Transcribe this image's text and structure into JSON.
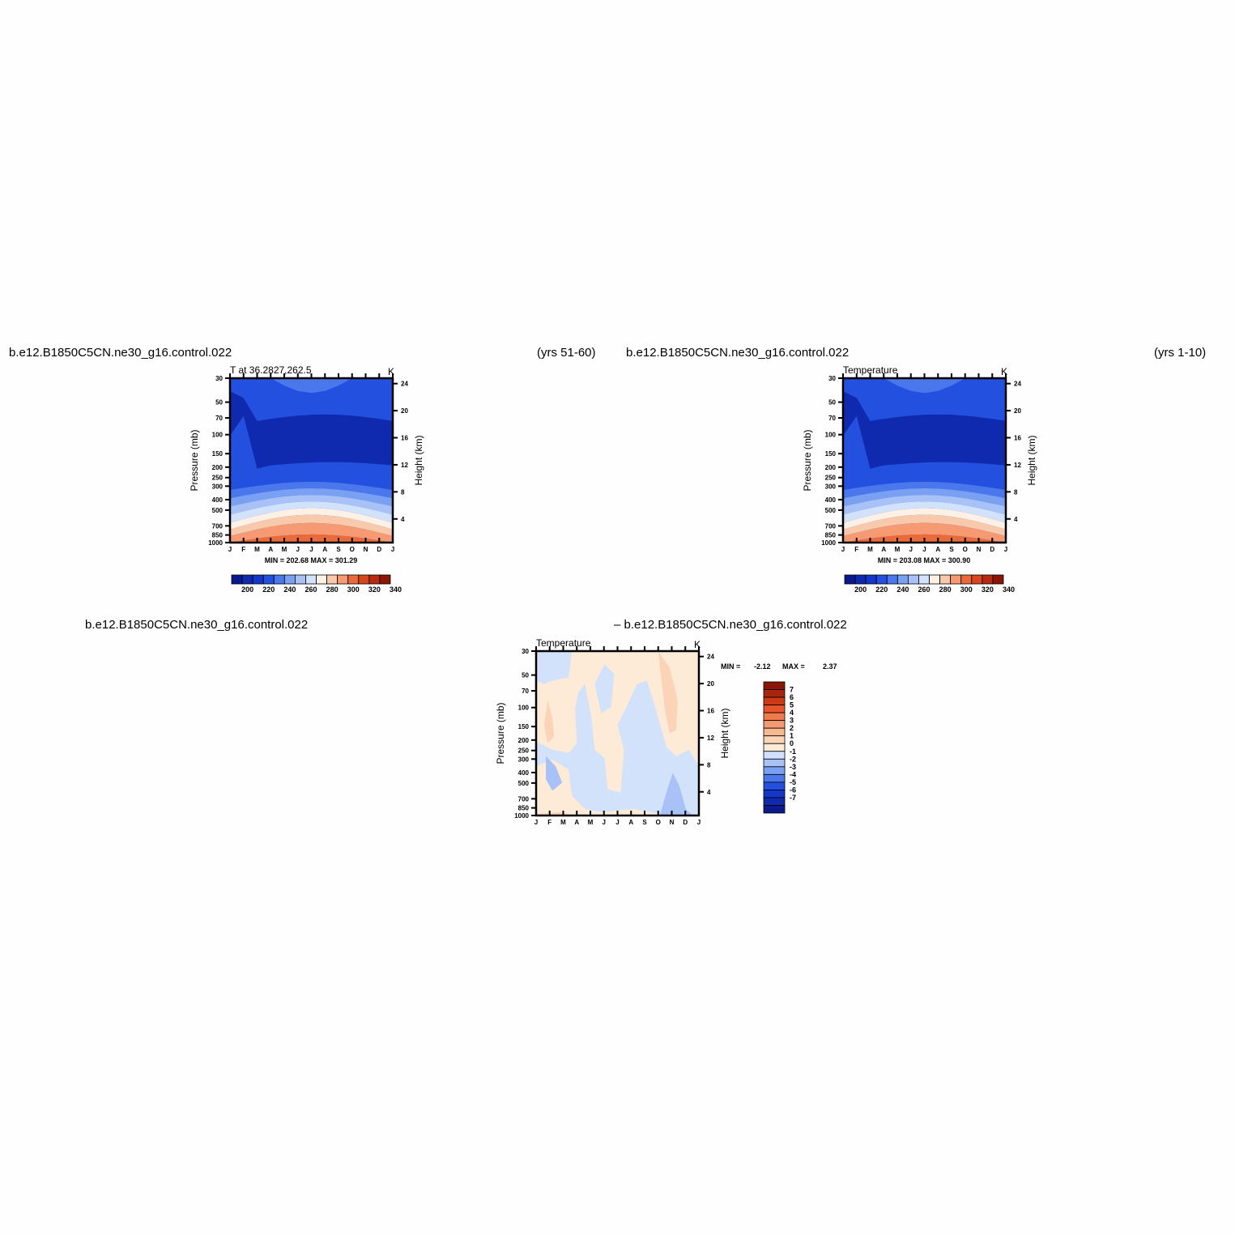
{
  "headers": {
    "left_case": "b.e12.B1850C5CN.ne30_g16.control.022",
    "left_years": "(yrs 51-60)",
    "right_case": "b.e12.B1850C5CN.ne30_g16.control.022",
    "right_years": "(yrs 1-10)",
    "diff_left_case": "b.e12.B1850C5CN.ne30_g16.control.022",
    "diff_right_case": "– b.e12.B1850C5CN.ne30_g16.control.022"
  },
  "colors": {
    "abs_scale": [
      "#0a1a8c",
      "#0f2aae",
      "#1636c8",
      "#2450e0",
      "#4a78ec",
      "#7aa0f2",
      "#a8c2f8",
      "#d2e2fb",
      "#fcf1e4",
      "#f8c9aa",
      "#f59a72",
      "#ea6a3c",
      "#d8461e",
      "#b62a12",
      "#8c1606"
    ],
    "diff_scale": [
      "#0a1a8c",
      "#0f2aae",
      "#1636c8",
      "#2450e0",
      "#4a78ec",
      "#7aa0f2",
      "#a8c2f8",
      "#d2e2fb",
      "#fdebd8",
      "#fbd4b7",
      "#f8b88f",
      "#f59a72",
      "#ee7a4e",
      "#e8552a",
      "#cc3a18",
      "#a82510",
      "#8c1606"
    ]
  },
  "chart_data": [
    {
      "type": "heatmap",
      "title": "T at 36.2827,262.5",
      "units": "K",
      "ylabel": "Pressure (mb)",
      "ylabel_right": "Height (km)",
      "xticks": [
        "J",
        "F",
        "M",
        "A",
        "M",
        "J",
        "J",
        "A",
        "S",
        "O",
        "N",
        "D",
        "J"
      ],
      "pressure_ticks": [
        "30",
        "50",
        "70",
        "100",
        "150",
        "200",
        "250",
        "300",
        "400",
        "500",
        "700",
        "850",
        "1000"
      ],
      "height_ticks": [
        "24",
        "20",
        "16",
        "12",
        "8",
        "4"
      ],
      "min_max": "MIN = 202.68   MAX = 301.29",
      "colorbar_labels": [
        "200",
        "220",
        "240",
        "260",
        "280",
        "300",
        "320",
        "340"
      ],
      "month_sample_xlim": [
        0,
        12
      ],
      "level_values_K": [
        [
          214,
          213,
          211,
          210,
          210,
          211,
          212,
          213,
          214,
          214,
          214,
          214,
          214
        ],
        [
          207,
          208,
          210,
          209,
          208,
          207,
          206,
          206,
          206,
          207,
          208,
          208,
          207
        ],
        [
          206,
          206,
          207,
          206,
          205,
          205,
          205,
          205,
          205,
          205,
          206,
          206,
          206
        ],
        [
          216,
          216,
          217,
          219,
          221,
          222,
          222,
          222,
          221,
          219,
          218,
          217,
          216
        ],
        [
          228,
          228,
          229,
          232,
          235,
          237,
          238,
          237,
          235,
          232,
          230,
          229,
          228
        ],
        [
          248,
          248,
          249,
          252,
          256,
          259,
          260,
          259,
          256,
          252,
          250,
          249,
          248
        ],
        [
          266,
          266,
          268,
          272,
          277,
          281,
          283,
          282,
          278,
          273,
          269,
          267,
          266
        ],
        [
          279,
          279,
          282,
          287,
          292,
          297,
          300,
          298,
          293,
          287,
          282,
          280,
          279
        ]
      ]
    },
    {
      "type": "heatmap",
      "title": "Temperature",
      "units": "K",
      "ylabel": "Pressure (mb)",
      "ylabel_right": "Height (km)",
      "xticks": [
        "J",
        "F",
        "M",
        "A",
        "M",
        "J",
        "J",
        "A",
        "S",
        "O",
        "N",
        "D",
        "J"
      ],
      "pressure_ticks": [
        "30",
        "50",
        "70",
        "100",
        "150",
        "200",
        "250",
        "300",
        "400",
        "500",
        "700",
        "850",
        "1000"
      ],
      "height_ticks": [
        "24",
        "20",
        "16",
        "12",
        "8",
        "4"
      ],
      "min_max": "MIN = 203.08   MAX = 300.90",
      "colorbar_labels": [
        "200",
        "220",
        "240",
        "260",
        "280",
        "300",
        "320",
        "340"
      ]
    },
    {
      "type": "heatmap",
      "title": "Temperature",
      "units": "K",
      "ylabel": "Pressure (mb)",
      "ylabel_right": "Height (km)",
      "xticks": [
        "J",
        "F",
        "M",
        "A",
        "M",
        "J",
        "J",
        "A",
        "S",
        "O",
        "N",
        "D",
        "J"
      ],
      "pressure_ticks": [
        "30",
        "50",
        "70",
        "100",
        "150",
        "200",
        "250",
        "300",
        "400",
        "500",
        "700",
        "850",
        "1000"
      ],
      "height_ticks": [
        "24",
        "20",
        "16",
        "12",
        "8",
        "4"
      ],
      "min_max_label": "MIN =",
      "min_value": "-2.12",
      "max_label": "MAX =",
      "max_value": "2.37",
      "colorbar_labels": [
        "7",
        "6",
        "5",
        "4",
        "3",
        "2",
        "1",
        "0",
        "-1",
        "-2",
        "-3",
        "-4",
        "-5",
        "-6",
        "-7"
      ]
    }
  ]
}
